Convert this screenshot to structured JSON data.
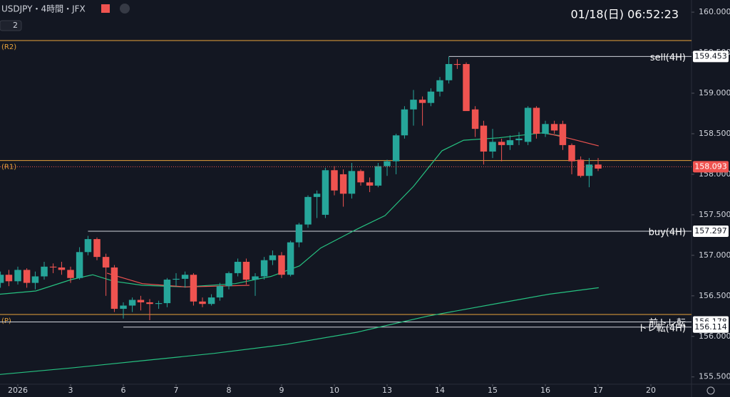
{
  "chart_data": {
    "type": "candlestick",
    "title": "USDJPY・4時間・JFX",
    "indicator_count": "2",
    "datetime": "01/18(日)  06:52:23",
    "up_color": "#26a69a",
    "down_color": "#ef5350",
    "x": [
      -0.33,
      -0.17,
      0,
      0.17,
      0.33,
      0.5,
      0.67,
      0.83,
      1,
      1.17,
      1.33,
      1.5,
      1.67,
      1.83,
      2,
      2.17,
      2.33,
      2.5,
      2.67,
      2.83,
      3,
      3.17,
      3.33,
      3.5,
      3.67,
      3.83,
      4,
      4.17,
      4.33,
      4.5,
      4.67,
      4.83,
      5,
      5.17,
      5.33,
      5.5,
      5.67,
      5.83,
      6,
      6.17,
      6.33,
      6.5,
      6.67,
      6.83,
      7,
      7.17,
      7.33,
      7.5,
      7.67,
      7.83,
      8,
      8.17,
      8.33,
      8.5,
      8.67,
      8.83,
      9,
      9.17,
      9.33,
      9.5,
      9.67,
      9.83,
      10,
      10.17,
      10.33,
      10.5,
      10.67,
      10.83,
      11
    ],
    "open": [
      156.66,
      156.76,
      156.68,
      156.82,
      156.66,
      156.74,
      156.86,
      156.85,
      156.82,
      156.72,
      157.04,
      157.2,
      156.98,
      156.85,
      156.34,
      156.38,
      156.45,
      156.42,
      156.4,
      156.41,
      156.7,
      156.71,
      156.76,
      156.43,
      156.4,
      156.48,
      156.62,
      156.78,
      156.92,
      156.7,
      156.74,
      156.94,
      157,
      156.76,
      157.16,
      157.38,
      157.72,
      157.5,
      158.05,
      158,
      157.76,
      158.04,
      157.9,
      157.86,
      158.1,
      158.16,
      158.48,
      158.8,
      158.92,
      158.88,
      159.02,
      159.16,
      159.36,
      159.36,
      158.8,
      158.6,
      158.28,
      158.4,
      158.36,
      158.42,
      158.4,
      158.82,
      158.5,
      158.62,
      158.62,
      158.36,
      158.18,
      157.98,
      158.12
    ],
    "high": [
      156.8,
      156.82,
      156.86,
      156.84,
      156.8,
      156.92,
      156.9,
      156.92,
      156.86,
      157.1,
      157.24,
      157.22,
      157.02,
      156.88,
      156.42,
      156.48,
      156.5,
      156.46,
      156.44,
      156.72,
      156.78,
      156.8,
      156.78,
      156.48,
      156.52,
      156.66,
      156.8,
      156.96,
      156.96,
      156.78,
      156.98,
      157.06,
      157.04,
      157.18,
      157.4,
      157.74,
      157.8,
      158.08,
      158.1,
      158.06,
      158.14,
      158.06,
      157.96,
      158.14,
      158.18,
      158.5,
      158.84,
      159.04,
      158.96,
      159.06,
      159.2,
      159.45,
      159.42,
      159.38,
      158.84,
      158.66,
      158.56,
      158.44,
      158.48,
      158.52,
      158.84,
      158.84,
      158.66,
      158.66,
      158.66,
      158.38,
      158.22,
      158.2,
      158.2
    ],
    "low": [
      156.6,
      156.62,
      156.64,
      156.6,
      156.58,
      156.7,
      156.78,
      156.76,
      156.66,
      156.7,
      157,
      156.94,
      156.5,
      156.3,
      156.22,
      156.3,
      156.32,
      156.2,
      156.34,
      156.36,
      156.62,
      156.6,
      156.38,
      156.36,
      156.38,
      156.44,
      156.58,
      156.74,
      156.64,
      156.5,
      156.7,
      156.88,
      156.72,
      156.74,
      157.1,
      157.34,
      157.46,
      157.46,
      157.74,
      157.6,
      157.7,
      157.86,
      157.78,
      157.84,
      157.98,
      158,
      158.44,
      158.6,
      158.6,
      158.84,
      158.96,
      159.12,
      159.3,
      158.8,
      158.46,
      158.12,
      158.2,
      158.16,
      158.3,
      158.36,
      158.36,
      158.44,
      158.46,
      158.5,
      158.3,
      158,
      157.96,
      157.84,
      158.04
    ],
    "close": [
      156.76,
      156.68,
      156.82,
      156.66,
      156.74,
      156.86,
      156.85,
      156.82,
      156.72,
      157.04,
      157.2,
      156.98,
      156.85,
      156.34,
      156.38,
      156.45,
      156.42,
      156.4,
      156.41,
      156.7,
      156.71,
      156.76,
      156.43,
      156.4,
      156.48,
      156.62,
      156.78,
      156.92,
      156.7,
      156.74,
      156.94,
      157,
      156.76,
      157.16,
      157.38,
      157.72,
      157.76,
      158.05,
      157.8,
      157.76,
      158.04,
      157.9,
      157.86,
      158.1,
      158.16,
      158.48,
      158.8,
      158.92,
      158.88,
      159.02,
      159.16,
      159.36,
      159.35,
      158.78,
      158.56,
      158.28,
      158.4,
      158.36,
      158.42,
      158.44,
      158.82,
      158.5,
      158.62,
      158.54,
      158.36,
      158.16,
      157.98,
      158.12,
      158.07
    ],
    "lines": [
      {
        "color": "#26c281",
        "x": [
          -0.34,
          0.34,
          1.01,
          1.42,
          1.82,
          2.36,
          3.18,
          4.12,
          4.8,
          5.34,
          5.74,
          6.42,
          6.96,
          7.5,
          8.04,
          8.45,
          9.12,
          9.93,
          10.34
        ],
        "values": [
          156.52,
          156.56,
          156.7,
          156.76,
          156.68,
          156.63,
          156.61,
          156.65,
          156.74,
          156.87,
          157.09,
          157.32,
          157.49,
          157.85,
          158.29,
          158.42,
          158.45,
          158.51,
          158.47
        ]
      },
      {
        "color": "#ef5350",
        "x": [
          1.69,
          2.36,
          3.18,
          4.39,
          null,
          10.07,
          10.47,
          11.01
        ],
        "values": [
          156.78,
          156.65,
          156.61,
          156.63,
          null,
          158.5,
          158.44,
          158.35
        ]
      },
      {
        "color": "#26c281",
        "x": [
          -0.34,
          1.01,
          2.36,
          3.72,
          5.07,
          6.42,
          7.77,
          9.12,
          10.07,
          11.01
        ],
        "values": [
          155.53,
          155.61,
          155.7,
          155.79,
          155.9,
          156.05,
          156.25,
          156.41,
          156.52,
          156.6
        ]
      }
    ],
    "levels": [
      {
        "label": "(R2)",
        "value": 159.65,
        "color": "#e8a33a",
        "label_side": "left"
      },
      {
        "label": "(R1)",
        "value": 158.17,
        "color": "#e8a33a",
        "label_side": "left"
      },
      {
        "label": "(P)",
        "value": 156.27,
        "color": "#e8a33a",
        "label_side": "left"
      },
      {
        "label": "sell(4H)",
        "value": 159.453,
        "color": "#d1d4dc",
        "x0": 8.17,
        "label_side": "right"
      },
      {
        "label": "buy(4H)",
        "value": 157.297,
        "color": "#d1d4dc",
        "x0": 1.33,
        "label_side": "right"
      },
      {
        "label": "前トレ転",
        "value": 156.178,
        "color": "#d1d4dc",
        "label_side": "right"
      },
      {
        "label": "トレ転(4H)",
        "value": 156.114,
        "color": "#d1d4dc",
        "x0": 2,
        "label_side": "right"
      }
    ],
    "last_price": 158.093,
    "xlim": [
      -0.338,
      12.77
    ],
    "ylim": [
      155.41,
      160.15
    ],
    "xticks": [
      {
        "value": 0,
        "label": "2026"
      },
      {
        "value": 1,
        "label": "3"
      },
      {
        "value": 2,
        "label": "6"
      },
      {
        "value": 3,
        "label": "7"
      },
      {
        "value": 4,
        "label": "8"
      },
      {
        "value": 5,
        "label": "9"
      },
      {
        "value": 6,
        "label": "10"
      },
      {
        "value": 7,
        "label": "13"
      },
      {
        "value": 8,
        "label": "14"
      },
      {
        "value": 9,
        "label": "15"
      },
      {
        "value": 10,
        "label": "16"
      },
      {
        "value": 11,
        "label": "17"
      },
      {
        "value": 12,
        "label": "20"
      }
    ],
    "yticks": [
      {
        "value": 155.5,
        "label": "155.500"
      },
      {
        "value": 156,
        "label": "156.000"
      },
      {
        "value": 156.5,
        "label": "156.500"
      },
      {
        "value": 157,
        "label": "157.000"
      },
      {
        "value": 157.5,
        "label": "157.500"
      },
      {
        "value": 158,
        "label": "158.000"
      },
      {
        "value": 158.5,
        "label": "158.500"
      },
      {
        "value": 159,
        "label": "159.000"
      },
      {
        "value": 159.5,
        "label": "159.500"
      },
      {
        "value": 160,
        "label": "160.000"
      }
    ]
  }
}
